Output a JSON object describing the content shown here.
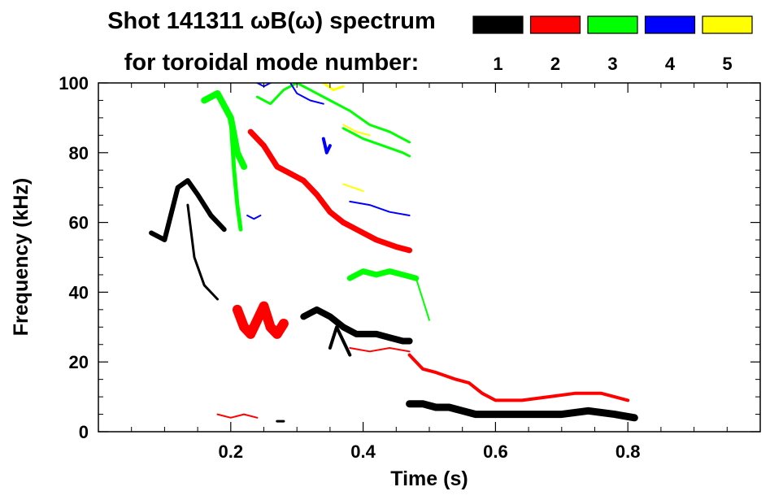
{
  "chart_data": {
    "type": "heatmap",
    "title_line1": "Shot 141311 ωB(ω) spectrum",
    "title_line2": "for toroidal mode number:",
    "xlabel": "Time (s)",
    "ylabel": "Frequency (kHz)",
    "xlim": [
      0.0,
      1.0
    ],
    "ylim": [
      0,
      100
    ],
    "x_ticks": [
      0.2,
      0.4,
      0.6,
      0.8
    ],
    "x_tick_labels": [
      "0.2",
      "0.4",
      "0.6",
      "0.8"
    ],
    "y_ticks": [
      0,
      20,
      40,
      60,
      80,
      100
    ],
    "y_tick_labels": [
      "0",
      "20",
      "40",
      "60",
      "80",
      "100"
    ],
    "legend": [
      {
        "n": "1",
        "color": "#000000"
      },
      {
        "n": "2",
        "color": "#ff0000"
      },
      {
        "n": "3",
        "color": "#00ff00"
      },
      {
        "n": "4",
        "color": "#0000ff"
      },
      {
        "n": "5",
        "color": "#ffff00"
      }
    ],
    "series": [
      {
        "name": "n=1",
        "color": "#000000",
        "segments": [
          {
            "x": [
              0.08,
              0.1,
              0.12,
              0.135,
              0.15,
              0.17,
              0.19
            ],
            "y": [
              57,
              55,
              70,
              72,
              68,
              62,
              58
            ],
            "width": 6
          },
          {
            "x": [
              0.135,
              0.145,
              0.16,
              0.18
            ],
            "y": [
              65,
              50,
              42,
              38
            ],
            "width": 3
          },
          {
            "x": [
              0.31,
              0.33,
              0.35,
              0.37,
              0.39,
              0.42,
              0.44,
              0.46,
              0.47
            ],
            "y": [
              33,
              35,
              33,
              30,
              28,
              28,
              27,
              26,
              26
            ],
            "width": 8
          },
          {
            "x": [
              0.35,
              0.36,
              0.37,
              0.38
            ],
            "y": [
              24,
              30,
              26,
              22
            ],
            "width": 4
          },
          {
            "x": [
              0.47,
              0.49,
              0.51,
              0.53,
              0.55,
              0.57,
              0.59,
              0.62,
              0.66,
              0.7,
              0.74,
              0.78,
              0.81
            ],
            "y": [
              8,
              8,
              7,
              7,
              6,
              5,
              5,
              5,
              5,
              5,
              6,
              5,
              4
            ],
            "width": 9
          },
          {
            "x": [
              0.27,
              0.28
            ],
            "y": [
              3,
              3
            ],
            "width": 3
          }
        ]
      },
      {
        "name": "n=2",
        "color": "#ff0000",
        "segments": [
          {
            "x": [
              0.21,
              0.22,
              0.23,
              0.24,
              0.25,
              0.26,
              0.27,
              0.28
            ],
            "y": [
              35,
              30,
              28,
              32,
              36,
              30,
              28,
              31
            ],
            "width": 12
          },
          {
            "x": [
              0.23,
              0.25,
              0.27,
              0.29,
              0.31,
              0.33,
              0.35,
              0.37,
              0.39,
              0.42,
              0.45,
              0.47
            ],
            "y": [
              86,
              82,
              76,
              74,
              72,
              68,
              63,
              60,
              58,
              55,
              53,
              52
            ],
            "width": 7
          },
          {
            "x": [
              0.47,
              0.49,
              0.51,
              0.54,
              0.56,
              0.58,
              0.6,
              0.64,
              0.68,
              0.72,
              0.76,
              0.8
            ],
            "y": [
              22,
              18,
              17,
              15,
              14,
              11,
              9,
              9,
              10,
              11,
              11,
              9
            ],
            "width": 4
          },
          {
            "x": [
              0.38,
              0.41,
              0.44,
              0.47
            ],
            "y": [
              24,
              23,
              24,
              23
            ],
            "width": 2
          },
          {
            "x": [
              0.18,
              0.2,
              0.22,
              0.24
            ],
            "y": [
              5,
              4,
              5,
              4
            ],
            "width": 2
          }
        ]
      },
      {
        "name": "n=3",
        "color": "#00ff00",
        "segments": [
          {
            "x": [
              0.16,
              0.18,
              0.2,
              0.21,
              0.22
            ],
            "y": [
              95,
              97,
              90,
              80,
              76
            ],
            "width": 8
          },
          {
            "x": [
              0.2,
              0.205,
              0.21,
              0.215
            ],
            "y": [
              90,
              75,
              65,
              58
            ],
            "width": 5
          },
          {
            "x": [
              0.24,
              0.26,
              0.28,
              0.3,
              0.32,
              0.35,
              0.38,
              0.41,
              0.44,
              0.47
            ],
            "y": [
              96,
              94,
              98,
              100,
              98,
              95,
              92,
              88,
              86,
              83
            ],
            "width": 3
          },
          {
            "x": [
              0.37,
              0.4,
              0.43,
              0.46,
              0.47
            ],
            "y": [
              87,
              84,
              82,
              80,
              79
            ],
            "width": 3
          },
          {
            "x": [
              0.38,
              0.4,
              0.42,
              0.44,
              0.46,
              0.48
            ],
            "y": [
              44,
              46,
              45,
              46,
              45,
              44
            ],
            "width": 7
          },
          {
            "x": [
              0.48,
              0.49,
              0.5
            ],
            "y": [
              44,
              38,
              32
            ],
            "width": 2
          }
        ]
      },
      {
        "name": "n=4",
        "color": "#0000ff",
        "segments": [
          {
            "x": [
              0.24,
              0.25,
              0.26
            ],
            "y": [
              100,
              99,
              100
            ],
            "width": 2
          },
          {
            "x": [
              0.29,
              0.3,
              0.32,
              0.34
            ],
            "y": [
              100,
              97,
              95,
              94
            ],
            "width": 2
          },
          {
            "x": [
              0.34,
              0.345,
              0.35
            ],
            "y": [
              84,
              80,
              82
            ],
            "width": 4
          },
          {
            "x": [
              0.38,
              0.41,
              0.44,
              0.47
            ],
            "y": [
              66,
              65,
              63,
              62
            ],
            "width": 2
          },
          {
            "x": [
              0.225,
              0.235,
              0.245
            ],
            "y": [
              62,
              61,
              62
            ],
            "width": 2
          }
        ]
      },
      {
        "name": "n=5",
        "color": "#ffff00",
        "segments": [
          {
            "x": [
              0.34,
              0.355,
              0.37
            ],
            "y": [
              100,
              98,
              99
            ],
            "width": 3
          },
          {
            "x": [
              0.37,
              0.39,
              0.41
            ],
            "y": [
              88,
              86,
              85
            ],
            "width": 2
          },
          {
            "x": [
              0.37,
              0.385,
              0.4
            ],
            "y": [
              71,
              70,
              69
            ],
            "width": 2
          }
        ]
      }
    ]
  }
}
